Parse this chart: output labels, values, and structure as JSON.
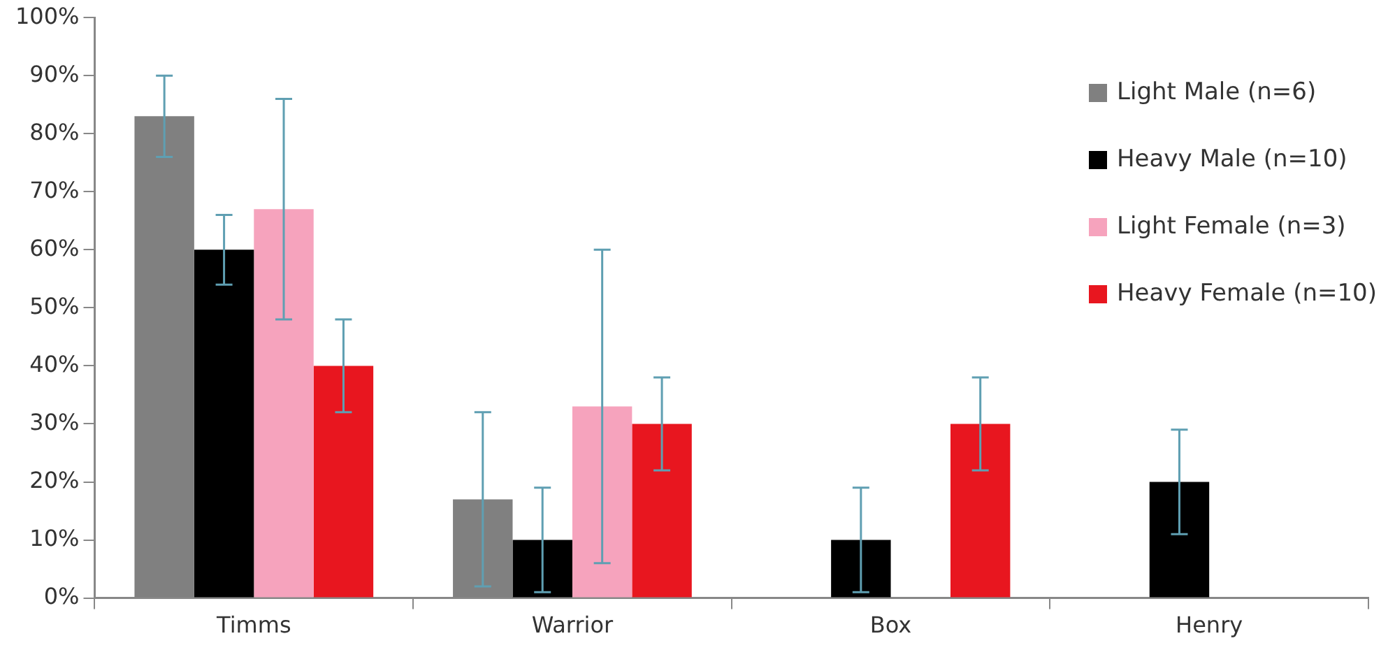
{
  "chart_data": {
    "type": "bar",
    "categories": [
      "Timms",
      "Warrior",
      "Box",
      "Henry"
    ],
    "series": [
      {
        "name": "Light Male (n=6)",
        "color": "#808080",
        "values": [
          83,
          17,
          null,
          null
        ],
        "errors": [
          [
            76,
            90
          ],
          [
            2,
            32
          ],
          null,
          null
        ]
      },
      {
        "name": "Heavy Male (n=10)",
        "color": "#000000",
        "values": [
          60,
          10,
          10,
          20
        ],
        "errors": [
          [
            54,
            66
          ],
          [
            1,
            19
          ],
          [
            1,
            19
          ],
          [
            11,
            29
          ]
        ]
      },
      {
        "name": "Light Female (n=3)",
        "color": "#f6a3bd",
        "values": [
          67,
          33,
          null,
          null
        ],
        "errors": [
          [
            48,
            86
          ],
          [
            6,
            60
          ],
          null,
          null
        ]
      },
      {
        "name": "Heavy Female (n=10)",
        "color": "#e8161f",
        "values": [
          40,
          30,
          30,
          null
        ],
        "errors": [
          [
            32,
            48
          ],
          [
            22,
            38
          ],
          [
            22,
            38
          ],
          null
        ]
      }
    ],
    "ylim": [
      0,
      100
    ],
    "yticks": [
      {
        "value": 0,
        "label": "0%"
      },
      {
        "value": 10,
        "label": "10%"
      },
      {
        "value": 20,
        "label": "20%"
      },
      {
        "value": 30,
        "label": "30%"
      },
      {
        "value": 40,
        "label": "40%"
      },
      {
        "value": 50,
        "label": "50%"
      },
      {
        "value": 60,
        "label": "60%"
      },
      {
        "value": 70,
        "label": "70%"
      },
      {
        "value": 80,
        "label": "80%"
      },
      {
        "value": 90,
        "label": "90%"
      },
      {
        "value": 100,
        "label": "100%"
      }
    ],
    "grid": false,
    "legend": "top right"
  }
}
